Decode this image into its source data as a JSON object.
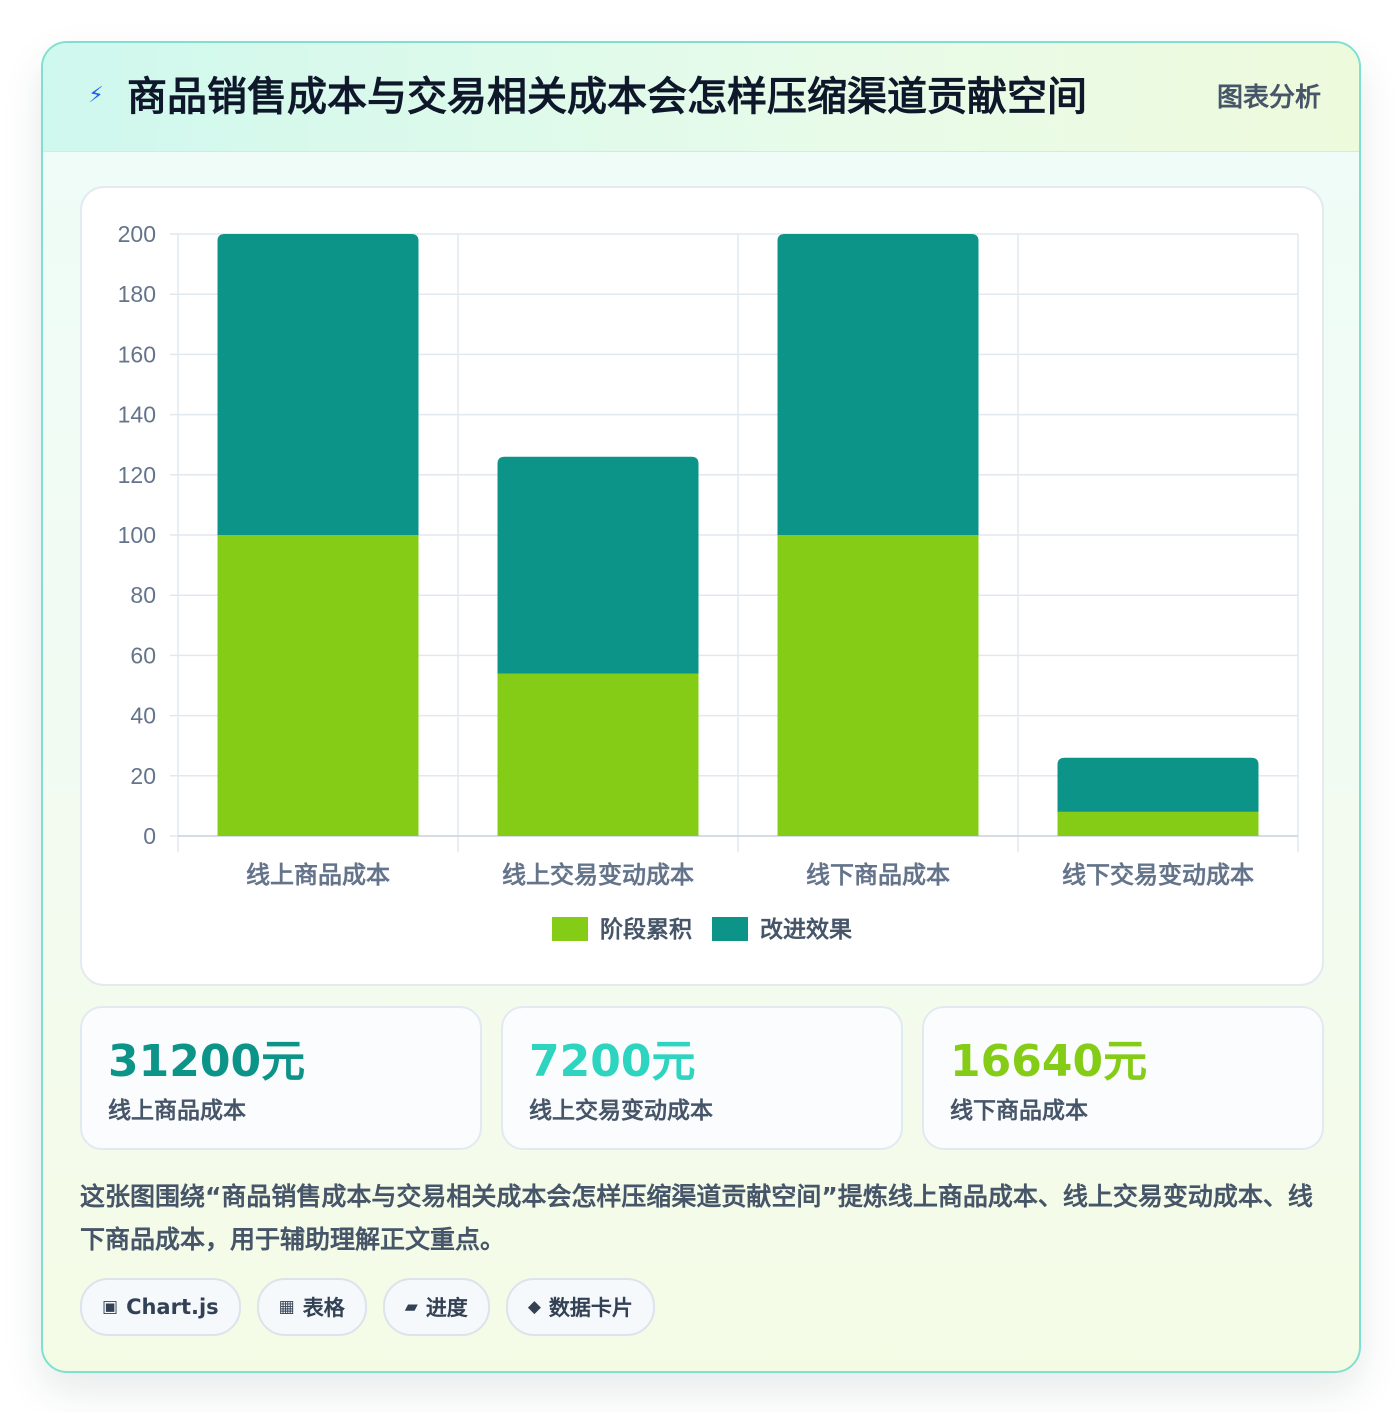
{
  "header": {
    "icon": "lightning-icon",
    "title": "商品销售成本与交易相关成本会怎样压缩渠道贡献空间",
    "tag": "图表分析"
  },
  "chart_data": {
    "type": "bar",
    "stacked": true,
    "categories": [
      "线上商品成本",
      "线上交易变动成本",
      "线下商品成本",
      "线下交易变动成本"
    ],
    "series": [
      {
        "name": "阶段累积",
        "values": [
          100,
          54,
          100,
          8
        ],
        "color": "#84cc16"
      },
      {
        "name": "改进效果",
        "values": [
          100,
          72,
          100,
          18
        ],
        "color": "#0d9488"
      }
    ],
    "ylim": [
      0,
      200
    ],
    "yticks": [
      0,
      20,
      40,
      60,
      80,
      100,
      120,
      140,
      160,
      180,
      200
    ],
    "grid": true,
    "legend": "bottom"
  },
  "stats": [
    {
      "value": "31200元",
      "label": "线上商品成本",
      "color": "#0d9488"
    },
    {
      "value": "7200元",
      "label": "线上交易变动成本",
      "color": "#2dd4bf"
    },
    {
      "value": "16640元",
      "label": "线下商品成本",
      "color": "#84cc16"
    }
  ],
  "description": "这张图围绕“商品销售成本与交易相关成本会怎样压缩渠道贡献空间”提炼线上商品成本、线上交易变动成本、线下商品成本，用于辅助理解正文重点。",
  "chips": [
    {
      "icon": "chart-icon",
      "glyph": "▣",
      "label": "Chart.js"
    },
    {
      "icon": "table-icon",
      "glyph": "▦",
      "label": "表格"
    },
    {
      "icon": "progress-icon",
      "glyph": "▰",
      "label": "进度"
    },
    {
      "icon": "diamond-icon",
      "glyph": "◆",
      "label": "数据卡片"
    }
  ]
}
